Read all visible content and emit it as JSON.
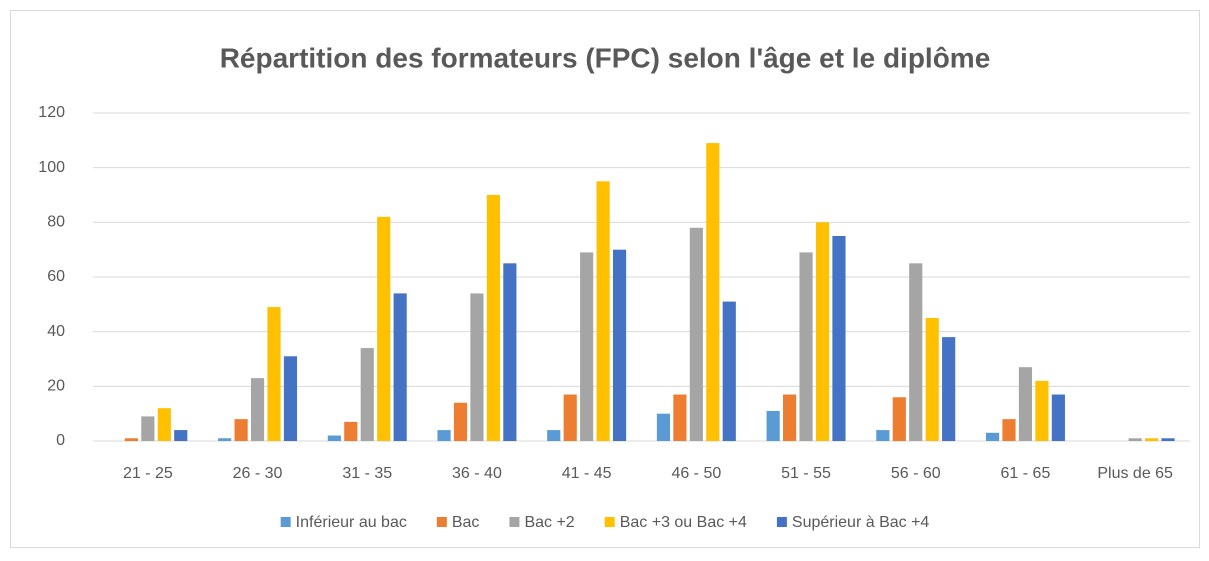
{
  "chart_data": {
    "type": "bar",
    "title": "Répartition des formateurs (FPC) selon l'âge et le diplôme",
    "categories": [
      "21 - 25",
      "26 - 30",
      "31 - 35",
      "36 - 40",
      "41 - 45",
      "46 - 50",
      "51 - 55",
      "56 - 60",
      "61 - 65",
      "Plus de 65"
    ],
    "series": [
      {
        "name": "Inférieur au bac",
        "color": "#5b9bd5",
        "values": [
          0,
          1,
          2,
          4,
          4,
          10,
          11,
          4,
          3,
          0
        ]
      },
      {
        "name": "Bac",
        "color": "#ed7d31",
        "values": [
          1,
          8,
          7,
          14,
          17,
          17,
          17,
          16,
          8,
          0
        ]
      },
      {
        "name": "Bac +2",
        "color": "#a5a5a5",
        "values": [
          9,
          23,
          34,
          54,
          69,
          78,
          69,
          65,
          27,
          1
        ]
      },
      {
        "name": "Bac +3 ou Bac +4",
        "color": "#ffc000",
        "values": [
          12,
          49,
          82,
          90,
          95,
          109,
          80,
          45,
          22,
          1
        ]
      },
      {
        "name": "Supérieur à Bac +4",
        "color": "#4472c4",
        "values": [
          4,
          31,
          54,
          65,
          70,
          51,
          75,
          38,
          17,
          1
        ]
      }
    ],
    "ylim": [
      0,
      120
    ],
    "yticks": [
      0,
      20,
      40,
      60,
      80,
      100,
      120
    ],
    "grid": true,
    "legend": "bottom"
  }
}
